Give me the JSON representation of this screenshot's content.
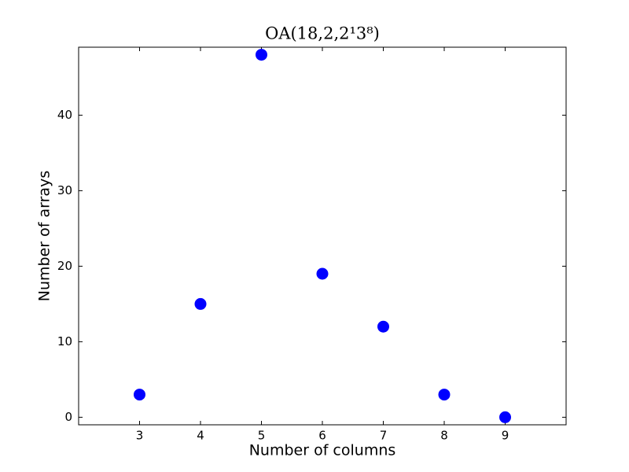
{
  "chart_data": {
    "type": "scatter",
    "title": "OA(18,2,2¹3⁸)",
    "x_label": "Number of columns",
    "y_label": "Number of arrays",
    "x": [
      3,
      4,
      5,
      6,
      7,
      8,
      9
    ],
    "values": [
      3,
      15,
      48,
      19,
      12,
      3,
      0
    ],
    "color": "#0000ff",
    "xlim": [
      2,
      10
    ],
    "xticks": [
      3,
      4,
      5,
      6,
      7,
      8,
      9
    ],
    "ylim": [
      -1,
      49
    ],
    "yticks": [
      0,
      10,
      20,
      30,
      40
    ]
  }
}
